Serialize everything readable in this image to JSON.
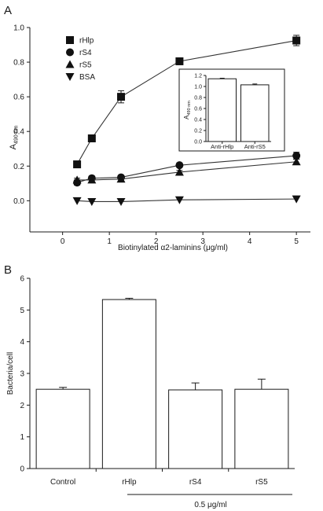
{
  "chart_data": [
    {
      "panel": "A",
      "type": "line",
      "xlabel": "Biotinylated α2-laminins (μg/ml)",
      "ylabel_main": "A",
      "ylabel_sub": "490 nm",
      "xlim": [
        -0.7,
        5.3
      ],
      "ylim": [
        -0.18,
        1.0
      ],
      "xticks": [
        0,
        1,
        2,
        3,
        4,
        5
      ],
      "yticks": [
        "0.0",
        "0.2",
        "0.4",
        "0.6",
        "0.8",
        "1.0"
      ],
      "legend_position": "top-left",
      "series": [
        {
          "name": "rHlp",
          "marker": "square",
          "x": [
            0.31,
            0.625,
            1.25,
            2.5,
            5
          ],
          "y": [
            0.21,
            0.36,
            0.6,
            0.805,
            0.925
          ],
          "err": [
            0,
            0,
            0.035,
            0,
            0.03
          ]
        },
        {
          "name": "rS4",
          "marker": "circle",
          "x": [
            0.31,
            0.625,
            1.25,
            2.5,
            5
          ],
          "y": [
            0.105,
            0.13,
            0.135,
            0.205,
            0.26
          ],
          "err": [
            0.015,
            0.01,
            0.012,
            0.01,
            0.02
          ]
        },
        {
          "name": "rS5",
          "marker": "triangle-up",
          "x": [
            0.31,
            0.625,
            1.25,
            2.5,
            5
          ],
          "y": [
            0.12,
            0.12,
            0.125,
            0.165,
            0.225
          ],
          "err": [
            0.01,
            0.01,
            0.01,
            0.01,
            0.015
          ]
        },
        {
          "name": "BSA",
          "marker": "triangle-down",
          "x": [
            0.31,
            0.625,
            1.25,
            2.5,
            5
          ],
          "y": [
            0,
            -0.005,
            -0.005,
            0.005,
            0.01
          ],
          "err": [
            0,
            0,
            0,
            0,
            0
          ]
        }
      ],
      "inset": {
        "type": "bar",
        "ylabel_main": "A",
        "ylabel_sub": "490 nm",
        "ylim": [
          0,
          1.2
        ],
        "yticks": [
          "0.0",
          "0.2",
          "0.4",
          "0.6",
          "0.8",
          "1.0",
          "1.2"
        ],
        "categories": [
          "Anti-rHlp",
          "Anti-rS5"
        ],
        "values": [
          1.14,
          1.03
        ],
        "err": [
          0.01,
          0.015
        ]
      }
    },
    {
      "panel": "B",
      "type": "bar",
      "ylabel": "Bacteria/cell",
      "ylim": [
        0,
        6
      ],
      "yticks": [
        "0",
        "1",
        "2",
        "3",
        "4",
        "5",
        "6"
      ],
      "categories": [
        "Control",
        "rHlp",
        "rS4",
        "rS5"
      ],
      "values": [
        2.5,
        5.33,
        2.48,
        2.5
      ],
      "err": [
        0.06,
        0.04,
        0.22,
        0.32
      ],
      "group_label": "0.5 μg/ml"
    }
  ]
}
